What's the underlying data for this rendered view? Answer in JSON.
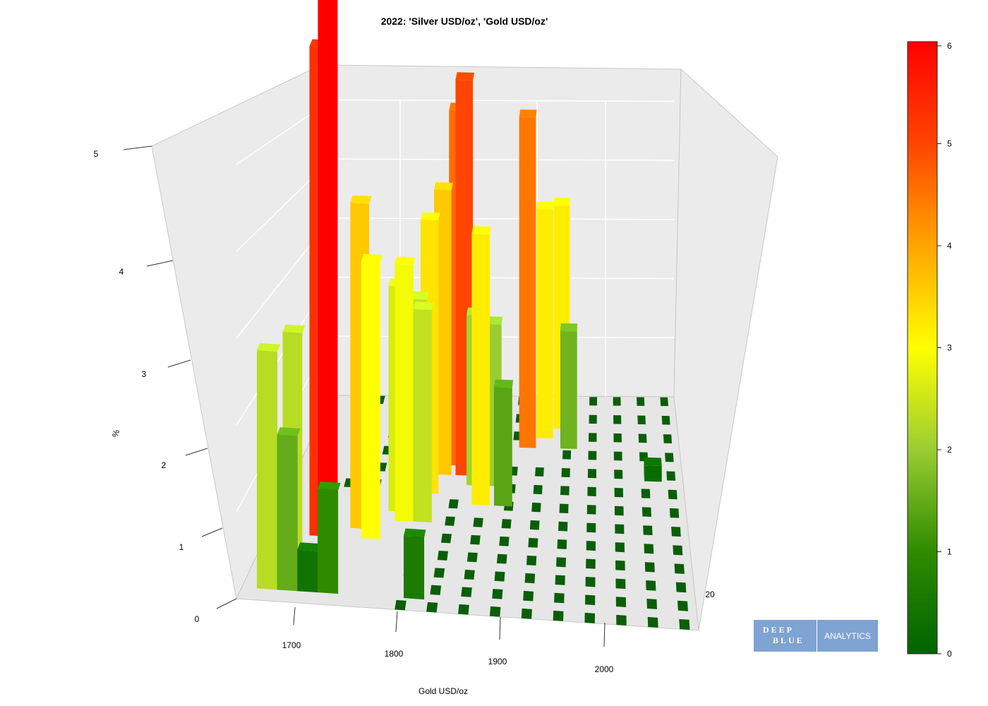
{
  "chart_data": {
    "type": "bar3d",
    "title": "2022: 'Silver USD/oz', 'Gold USD/oz'",
    "xlabel": "Gold USD/oz",
    "zlabel": "%",
    "x_ticks": [
      "1700",
      "1800",
      "1900",
      "2000"
    ],
    "y_ticks": [
      "20"
    ],
    "z_ticks": [
      "0",
      "1",
      "2",
      "3",
      "4",
      "5"
    ],
    "colorbar": {
      "ticks": [
        "0",
        "1",
        "2",
        "3",
        "4",
        "5",
        "6"
      ],
      "range": [
        0,
        6
      ],
      "colors": [
        "#006400",
        "#2e8b00",
        "#9acd32",
        "#ffff00",
        "#ffa500",
        "#ff4500",
        "#ff0000"
      ]
    },
    "bars": [
      {
        "gold": 1665,
        "silver": 18.0,
        "value": 2.3
      },
      {
        "gold": 1675,
        "silver": 19.6,
        "value": 2.3
      },
      {
        "gold": 1685,
        "silver": 18.0,
        "value": 1.5
      },
      {
        "gold": 1695,
        "silver": 20.4,
        "value": 5.3
      },
      {
        "gold": 1705,
        "silver": 18.0,
        "value": 0.4
      },
      {
        "gold": 1715,
        "silver": 19.2,
        "value": 6.1
      },
      {
        "gold": 1725,
        "silver": 18.0,
        "value": 1.0
      },
      {
        "gold": 1735,
        "silver": 20.8,
        "value": 3.6
      },
      {
        "gold": 1750,
        "silver": 20.4,
        "value": 3.0
      },
      {
        "gold": 1770,
        "silver": 21.6,
        "value": 2.6
      },
      {
        "gold": 1780,
        "silver": 21.2,
        "value": 2.9
      },
      {
        "gold": 1790,
        "silver": 22.0,
        "value": 2.4
      },
      {
        "gold": 1800,
        "silver": 22.4,
        "value": 3.3
      },
      {
        "gold": 1800,
        "silver": 21.2,
        "value": 2.4
      },
      {
        "gold": 1810,
        "silver": 23.2,
        "value": 3.6
      },
      {
        "gold": 1825,
        "silver": 23.6,
        "value": 4.6
      },
      {
        "gold": 1835,
        "silver": 23.2,
        "value": 5.0
      },
      {
        "gold": 1810,
        "silver": 18.0,
        "value": 0.6
      },
      {
        "gold": 1860,
        "silver": 22.0,
        "value": 3.2
      },
      {
        "gold": 1905,
        "silver": 24.4,
        "value": 4.5
      },
      {
        "gold": 1925,
        "silver": 24.8,
        "value": 3.2
      },
      {
        "gold": 1945,
        "silver": 25.2,
        "value": 3.2
      },
      {
        "gold": 1955,
        "silver": 24.4,
        "value": 1.6
      },
      {
        "gold": 1885,
        "silver": 22.0,
        "value": 1.4
      },
      {
        "gold": 1870,
        "silver": 22.8,
        "value": 2.0
      },
      {
        "gold": 1850,
        "silver": 22.8,
        "value": 2.1
      },
      {
        "gold": 2055,
        "silver": 23.2,
        "value": 0.2
      }
    ],
    "grid": true,
    "colorbar_placement": "right"
  },
  "logo": {
    "line1": "DEEP",
    "line2": "BLUE",
    "right": "ANALYTICS"
  }
}
